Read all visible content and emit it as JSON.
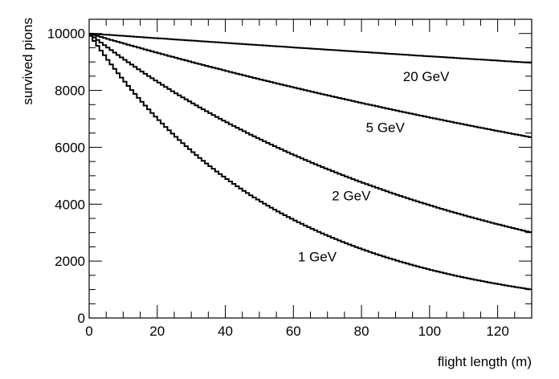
{
  "chart_data": {
    "type": "line",
    "title": "",
    "xlabel": "flight length (m)",
    "ylabel": "survived pions",
    "xlim": [
      0,
      130
    ],
    "ylim": [
      0,
      10500
    ],
    "xticks": [
      0,
      20,
      40,
      60,
      80,
      100,
      120
    ],
    "yticks": [
      0,
      2000,
      4000,
      6000,
      8000,
      10000
    ],
    "xtick_labels": [
      "0",
      "20",
      "40",
      "60",
      "80",
      "100",
      "120"
    ],
    "ytick_labels": [
      "0",
      "2000",
      "4000",
      "6000",
      "8000",
      "10000"
    ],
    "x_minor_step": 5,
    "y_minor_step": 500,
    "grid": false,
    "x": [
      0,
      5,
      10,
      15,
      20,
      25,
      30,
      35,
      40,
      45,
      50,
      55,
      60,
      65,
      70,
      75,
      80,
      85,
      90,
      95,
      100,
      105,
      110,
      115,
      120,
      125,
      130
    ],
    "series": [
      {
        "name": "20 GeV",
        "values": [
          10000,
          9958,
          9917,
          9875,
          9834,
          9793,
          9752,
          9712,
          9671,
          9631,
          9591,
          9551,
          9511,
          9471,
          9432,
          9393,
          9354,
          9315,
          9276,
          9237,
          9199,
          9161,
          9123,
          9085,
          9047,
          9009,
          8972
        ]
      },
      {
        "name": "5 GeV",
        "values": [
          10000,
          9827,
          9657,
          9489,
          9325,
          9163,
          9004,
          8848,
          8695,
          8544,
          8396,
          8251,
          8108,
          7967,
          7829,
          7694,
          7560,
          7429,
          7301,
          7174,
          7050,
          6928,
          6808,
          6690,
          6574,
          6460,
          6348
        ]
      },
      {
        "name": "2 GeV",
        "values": [
          10000,
          9548,
          9116,
          8704,
          8311,
          7935,
          7577,
          7234,
          6907,
          6595,
          6297,
          6012,
          5741,
          5481,
          5234,
          4997,
          4771,
          4556,
          4350,
          4153,
          3966,
          3786,
          3615,
          3452,
          3296,
          3147,
          3005
        ]
      },
      {
        "name": "1 GeV",
        "values": [
          10000,
          9153,
          8377,
          7668,
          7018,
          6424,
          5880,
          5382,
          4926,
          4509,
          4127,
          3777,
          3457,
          3165,
          2897,
          2651,
          2427,
          2221,
          2033,
          1861,
          1703,
          1559,
          1427,
          1306,
          1195,
          1094,
          1002
        ]
      }
    ],
    "annotations": [
      {
        "text": "20 GeV",
        "x": 99,
        "y": 8500
      },
      {
        "text": "5 GeV",
        "x": 87,
        "y": 6700
      },
      {
        "text": "2 GeV",
        "x": 77,
        "y": 4300
      },
      {
        "text": "1 GeV",
        "x": 67,
        "y": 2160
      }
    ],
    "line_color": "#000000"
  }
}
